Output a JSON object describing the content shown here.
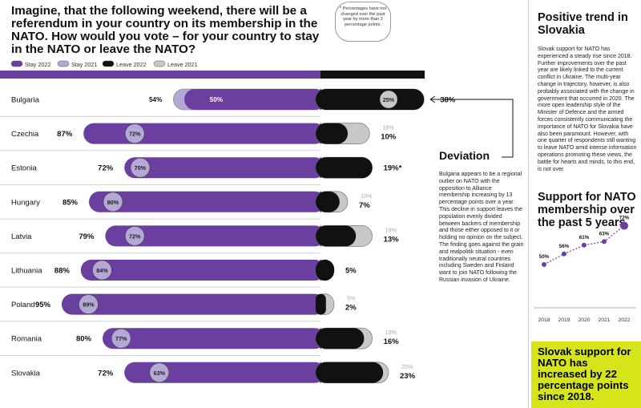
{
  "title": "Imagine, that the following weekend, there will be a referendum in your country on its membership in the NATO. How would you vote – for your country to stay in the NATO or leave the NATO?",
  "note": "* Percentages have not changed over the past year by more than 2 percentage points.",
  "deviation": {
    "title": "Deviation",
    "body": "Bulgaria appears to be a regional outlier on NATO with the opposition to Alliance membership increasing by 13 percentage points over a year. This decline in support leaves the population evenly divided between backers of membership and those either opposed to it or holding no opinion on the subject. The finding goes against the grain and realpolitik situation - even traditionally neutral countries including Sweden and Finland want to join NATO following the Russian invasion of Ukraine."
  },
  "sidebar": {
    "title": "Positive trend in Slovakia",
    "body": "Slovak support for NATO has experienced a steady rise since 2018. Further improvements over the past year are likely linked to the current conflict in Ukraine. The multi-year change in trajectory, however, is also probably associated with the change in government that occurred in 2020. The more open leadership style of the Minister of Defence and the armed forces consistently communicating the importance of NATO for Slovakia have also been paramount. However, with one quarter of respondents still wanting to leave NATO amid intense information operations promoting these views, the battle for hearts and minds, to this end, is not over.",
    "mini_title": "Support for NATO membership over the past 5 years",
    "callout": "Slovak support for NATO has increased by 22 percentage points since 2018."
  },
  "colors": {
    "stay2022": "#6b3fa0",
    "stay2021": "#b5a8d6",
    "leave2022": "#111111",
    "leave2021": "#c8c8c8",
    "callout": "#d6e51a"
  },
  "chart_data": [
    {
      "type": "bar",
      "legend": [
        "Stay 2022",
        "Stay 2021",
        "Leave 2022",
        "Leave 2021"
      ],
      "categories": [
        "Bulgaria",
        "Czechia",
        "Estonia",
        "Hungary",
        "Latvia",
        "Lithuania",
        "Poland",
        "Romania",
        "Slovakia"
      ],
      "series": [
        {
          "name": "Stay 2022",
          "values": [
            50,
            87,
            72,
            85,
            79,
            88,
            95,
            80,
            72
          ]
        },
        {
          "name": "Stay 2021",
          "values": [
            54,
            72,
            70,
            80,
            72,
            84,
            89,
            77,
            63
          ]
        },
        {
          "name": "Leave 2022",
          "values": [
            38,
            10,
            19,
            7,
            13,
            5,
            2,
            16,
            23
          ]
        },
        {
          "name": "Leave 2021",
          "values": [
            25,
            18,
            19,
            10,
            19,
            5,
            5,
            19,
            25
          ]
        }
      ],
      "stay2022_labels": [
        "50%",
        "87%",
        "72%",
        "85%",
        "79%",
        "88%",
        "95%",
        "80%",
        "72%"
      ],
      "stay2021_labels": [
        "54%",
        "72%",
        "70%",
        "80%",
        "72%",
        "84%",
        "89%",
        "77%",
        "63%"
      ],
      "leave2022_labels": [
        "38%",
        "10%",
        "19%*",
        "7%",
        "13%",
        "5%",
        "2%",
        "16%",
        "23%"
      ],
      "leave2021_labels": [
        "25%",
        "18%",
        "",
        "10%",
        "19%",
        "",
        "5%",
        "19%",
        "25%"
      ]
    },
    {
      "type": "line",
      "x": [
        "2018",
        "2019",
        "2020",
        "2021",
        "2022"
      ],
      "values": [
        50,
        56,
        61,
        63,
        72
      ],
      "labels": [
        "50%",
        "56%",
        "61%",
        "63%",
        "72%"
      ]
    }
  ]
}
